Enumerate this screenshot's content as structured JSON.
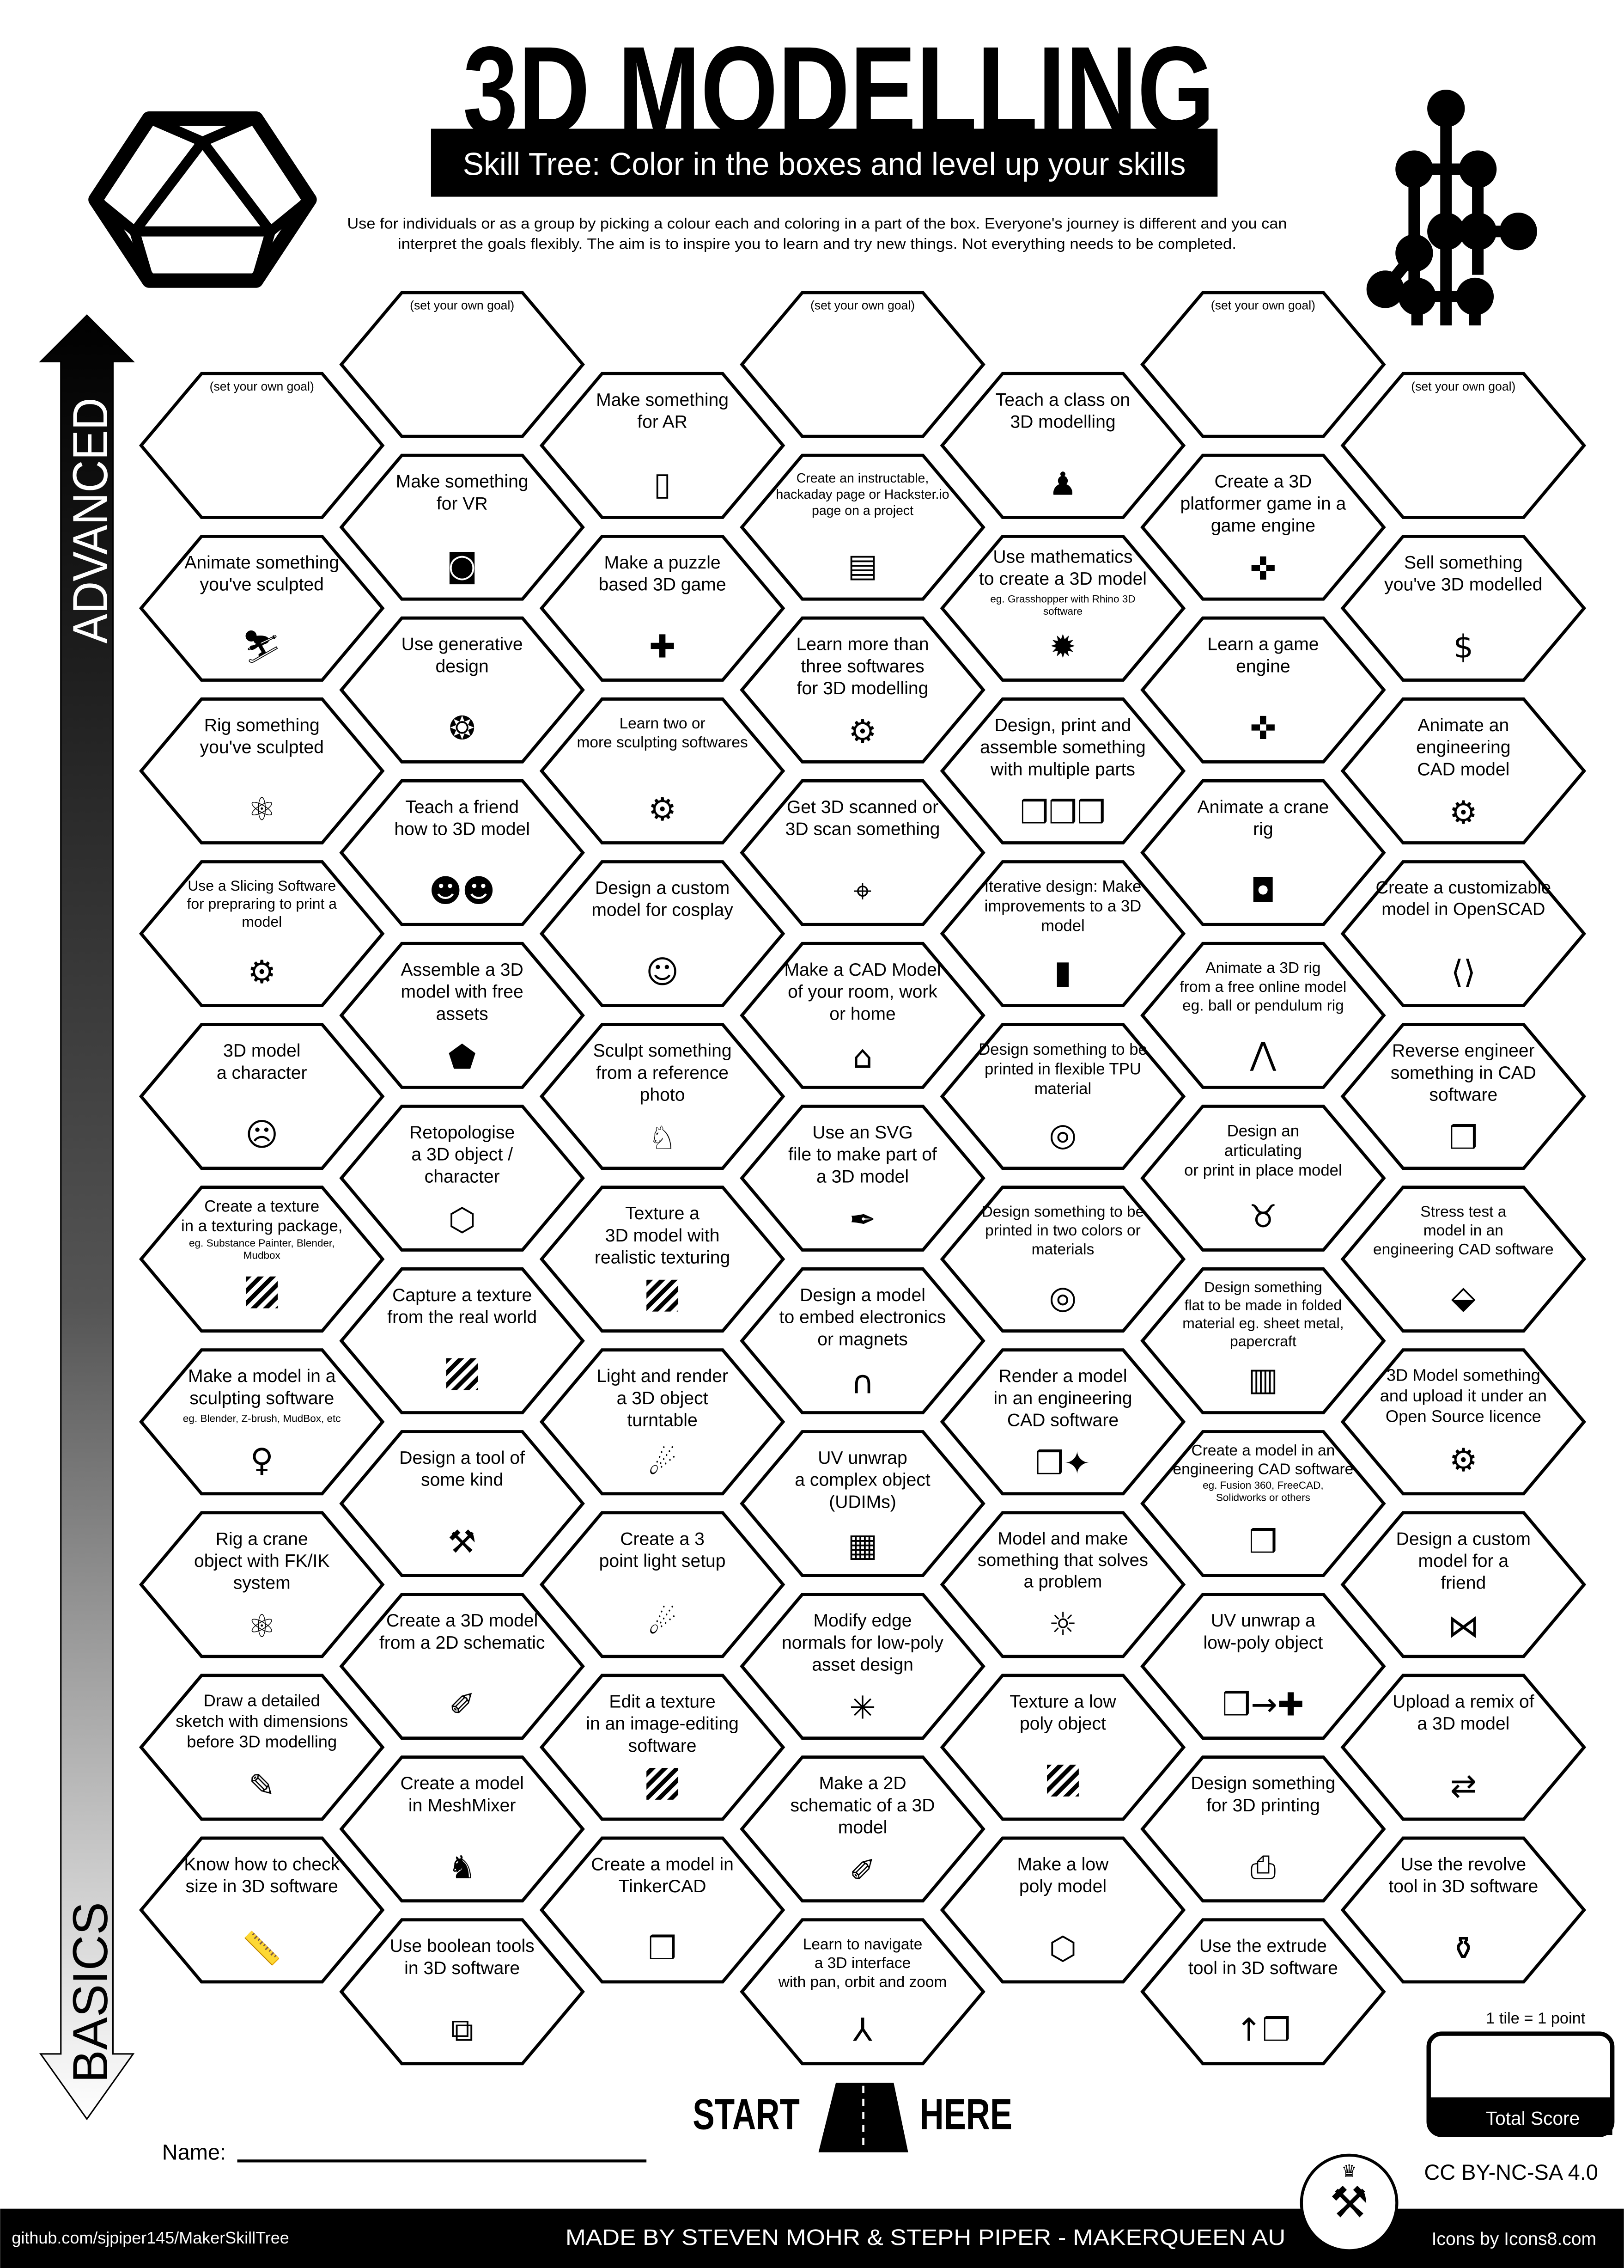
{
  "header": {
    "title": "3D MODELLING",
    "subtitle": "Skill Tree:  Color in the boxes and level up your skills",
    "description_line1": "Use for individuals or as a group by picking a colour each and coloring in a part of the box.  Everyone's journey is different and you can",
    "description_line2": "interpret the goals flexibly.  The aim is to inspire you to learn and try new things. Not everything needs to be completed."
  },
  "axis": {
    "top_label": "ADVANCED",
    "bottom_label": "BASICS"
  },
  "goal_label": "(set your own goal)",
  "columns": [
    [
      {
        "goal": true
      },
      {
        "lines": [
          "Animate something",
          "you've sculpted"
        ],
        "icon": "walking-person-icon"
      },
      {
        "lines": [
          "Rig something",
          "you've sculpted"
        ],
        "icon": "rig-icon"
      },
      {
        "lines": [
          "Use a Slicing Software",
          "for prepraring to print a",
          "model"
        ],
        "icon": "laptop-gear-icon"
      },
      {
        "lines": [
          "3D model",
          "a character"
        ],
        "icon": "character-face-icon"
      },
      {
        "lines": [
          "Create a texture",
          "in a texturing package,"
        ],
        "note": [
          "eg. Substance Painter, Blender,",
          "Mudbox"
        ],
        "icon": "texture-icon"
      },
      {
        "lines": [
          "Make a model in a",
          "sculpting software"
        ],
        "note": [
          "eg. Blender, Z-brush, MudBox, etc"
        ],
        "icon": "statue-icon"
      },
      {
        "lines": [
          "Rig a crane",
          "object with FK/IK",
          "system"
        ],
        "icon": "rig-icon"
      },
      {
        "lines": [
          "Draw a detailed",
          "sketch with dimensions",
          "before 3D modelling"
        ],
        "icon": "sketch-icon"
      },
      {
        "lines": [
          "Know how to check",
          "size in 3D software"
        ],
        "icon": "ruler-icon"
      }
    ],
    [
      {
        "goal": true
      },
      {
        "lines": [
          "Make something",
          "for VR"
        ],
        "icon": "vr-headset-icon"
      },
      {
        "lines": [
          "Use generative",
          "design"
        ],
        "icon": "brain-icon"
      },
      {
        "lines": [
          "Teach a friend",
          "how to 3D model"
        ],
        "icon": "teach-friend-icon"
      },
      {
        "lines": [
          "Assemble a 3D",
          "model with free",
          "assets"
        ],
        "icon": "free-tag-icon"
      },
      {
        "lines": [
          "Retopologise",
          "a 3D object /",
          "character"
        ],
        "icon": "polyhedron-icon"
      },
      {
        "lines": [
          "Capture a texture",
          "from the real world"
        ],
        "icon": "texture-icon"
      },
      {
        "lines": [
          "Design a tool of",
          "some kind"
        ],
        "icon": "tools-icon"
      },
      {
        "lines": [
          "Create a 3D model",
          "from a 2D  schematic"
        ],
        "icon": "schematic-icon"
      },
      {
        "lines": [
          "Create a model",
          "in MeshMixer"
        ],
        "icon": "rabbit-icon"
      },
      {
        "lines": [
          "Use boolean tools",
          "in 3D software"
        ],
        "icon": "boolean-icon"
      }
    ],
    [
      {
        "lines": [
          "Make something",
          "for AR"
        ],
        "icon": "ar-phone-icon"
      },
      {
        "lines": [
          "Make a puzzle",
          "based 3D game"
        ],
        "icon": "puzzle-icon"
      },
      {
        "lines": [
          "Learn two or",
          "more sculpting softwares"
        ],
        "icon": "laptop-gear-icon"
      },
      {
        "lines": [
          "Design a custom",
          "model for cosplay"
        ],
        "icon": "cosplay-icon"
      },
      {
        "lines": [
          "Sculpt something",
          "from a reference",
          "photo"
        ],
        "icon": "dog-icon"
      },
      {
        "lines": [
          "Texture a",
          "3D model with",
          "realistic texturing"
        ],
        "icon": "texture-icon"
      },
      {
        "lines": [
          "Light and render",
          "a 3D object",
          "turntable"
        ],
        "icon": "spotlight-icon"
      },
      {
        "lines": [
          "Create a 3",
          "point light setup"
        ],
        "icon": "spotlight-icon"
      },
      {
        "lines": [
          "Edit a texture",
          "in an image-editing",
          "software"
        ],
        "icon": "texture-icon"
      },
      {
        "lines": [
          "Create a model in",
          "TinkerCAD"
        ],
        "icon": "cube-icon"
      }
    ],
    [
      {
        "goal": true
      },
      {
        "lines": [
          "Create an instructable,",
          "hackaday page or Hackster.io",
          "page on a project"
        ],
        "icon": "document-smile-icon"
      },
      {
        "lines": [
          "Learn more than",
          "three softwares",
          "for 3D modelling"
        ],
        "icon": "laptop-gear-icon"
      },
      {
        "lines": [
          "Get 3D scanned or",
          "3D scan something"
        ],
        "icon": "scan-icon"
      },
      {
        "lines": [
          "Make a CAD Model",
          "of your room, work",
          "or home"
        ],
        "icon": "house-icon"
      },
      {
        "lines": [
          "Use an SVG",
          "file to make part of",
          "a 3D model"
        ],
        "icon": "pen-tool-icon"
      },
      {
        "lines": [
          "Design a model",
          "to embed electronics",
          "or magnets"
        ],
        "icon": "magnet-icon"
      },
      {
        "lines": [
          "UV unwrap",
          "a complex object",
          "(UDIMs)"
        ],
        "icon": "udim-icon"
      },
      {
        "lines": [
          "Modify edge",
          "normals for low-poly",
          "asset design"
        ],
        "icon": "normals-icon"
      },
      {
        "lines": [
          "Make a 2D",
          "schematic of a 3D",
          "model"
        ],
        "icon": "schematic-icon"
      },
      {
        "lines": [
          "Learn to navigate",
          "a 3D interface",
          "with pan, orbit and zoom"
        ],
        "icon": "axes-icon"
      }
    ],
    [
      {
        "lines": [
          "Teach a class on",
          "3D modelling"
        ],
        "icon": "teacher-icon"
      },
      {
        "lines": [
          "Use mathematics",
          "to create a 3D model"
        ],
        "note": [
          "eg. Grasshopper with Rhino 3D",
          "software"
        ],
        "icon": "fractal-icon"
      },
      {
        "lines": [
          "Design, print and",
          "assemble something",
          "with multiple parts"
        ],
        "icon": "cubes-icon"
      },
      {
        "lines": [
          "Iterative design:  Make",
          "improvements to a 3D",
          "model"
        ],
        "icon": "version-2-file-icon"
      },
      {
        "lines": [
          "Design something to be",
          "printed in flexible TPU",
          "material"
        ],
        "icon": "filament-spool-icon"
      },
      {
        "lines": [
          "Design something to be",
          "printed in two colors or",
          "materials"
        ],
        "icon": "filament-spool-icon"
      },
      {
        "lines": [
          "Render a model",
          "in an engineering",
          "CAD software"
        ],
        "icon": "cube-sparkle-icon"
      },
      {
        "lines": [
          "Model and make",
          "something that solves",
          "a problem"
        ],
        "icon": "lightbulb-icon"
      },
      {
        "lines": [
          "Texture a low",
          "poly object"
        ],
        "icon": "texture-icon"
      },
      {
        "lines": [
          "Make a low",
          "poly model"
        ],
        "icon": "polyhedron-icon"
      }
    ],
    [
      {
        "goal": true
      },
      {
        "lines": [
          "Create a 3D",
          "platformer game in a",
          "game engine"
        ],
        "icon": "gamepad-icon"
      },
      {
        "lines": [
          "Learn a game",
          "engine"
        ],
        "icon": "gamepad-icon"
      },
      {
        "lines": [
          "Animate a crane",
          "rig"
        ],
        "icon": "camera-icon"
      },
      {
        "lines": [
          "Animate a 3D rig",
          "from a free online model",
          "eg. ball or pendulum rig"
        ],
        "icon": "pendulum-icon"
      },
      {
        "lines": [
          "Design an",
          "articulating",
          "or print in place model"
        ],
        "icon": "dragon-icon"
      },
      {
        "lines": [
          "Design something",
          "flat to be made in folded",
          "material eg. sheet metal,",
          "papercraft"
        ],
        "icon": "paper-roll-icon"
      },
      {
        "lines": [
          "Create a model in an",
          "engineering CAD software"
        ],
        "note": [
          "eg. Fusion 360, FreeCAD,",
          "Solidworks or others"
        ],
        "icon": "cube-icon"
      },
      {
        "lines": [
          "UV unwrap a",
          "low-poly object"
        ],
        "icon": "uv-unfold-icon"
      },
      {
        "lines": [
          "Design something",
          "for 3D printing"
        ],
        "icon": "3d-printer-icon"
      },
      {
        "lines": [
          "Use the extrude",
          "tool in 3D software"
        ],
        "icon": "extrude-icon"
      }
    ],
    [
      {
        "goal": true
      },
      {
        "lines": [
          "Sell something",
          "you've 3D modelled"
        ],
        "icon": "money-bag-icon"
      },
      {
        "lines": [
          "Animate an",
          "engineering",
          "CAD model"
        ],
        "icon": "gears-icon"
      },
      {
        "lines": [
          "Create a customizable",
          "model in OpenSCAD"
        ],
        "icon": "code-window-icon"
      },
      {
        "lines": [
          "Reverse engineer",
          "something in CAD",
          "software"
        ],
        "icon": "cube-icon"
      },
      {
        "lines": [
          "Stress test a",
          "model in an",
          "engineering CAD software"
        ],
        "icon": "stress-test-icon"
      },
      {
        "lines": [
          "3D Model something",
          "and upload it under an",
          "Open Source licence"
        ],
        "icon": "open-source-icon"
      },
      {
        "lines": [
          "Design a custom",
          "model for a",
          "friend"
        ],
        "icon": "gift-bow-icon"
      },
      {
        "lines": [
          "Upload a remix of",
          "a 3D model"
        ],
        "icon": "remix-icon"
      },
      {
        "lines": [
          "Use the revolve",
          "tool in 3D software"
        ],
        "icon": "vase-icon"
      }
    ]
  ],
  "start": {
    "left": "START",
    "right": "HERE"
  },
  "name_label": "Name:",
  "score": {
    "caption": "1 tile = 1 point",
    "label": "Total Score",
    "value": ""
  },
  "license": "CC BY-NC-SA 4.0",
  "footer": {
    "github": "github.com/sjpiper145/MakerSkillTree",
    "credits": "MADE BY STEVEN MOHR & STEPH PIPER  -  MAKERQUEEN AU",
    "icons": "Icons by Icons8.com"
  },
  "colors": {
    "ink": "#000000",
    "paper": "#ffffff"
  }
}
